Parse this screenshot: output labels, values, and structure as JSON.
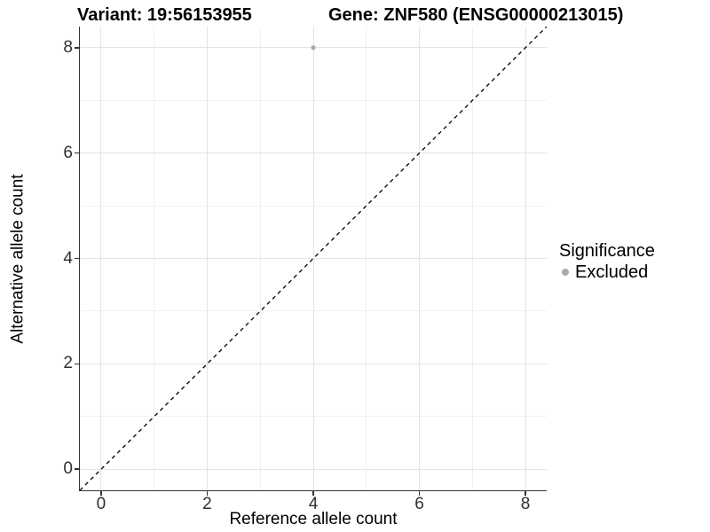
{
  "chart_data": {
    "type": "scatter",
    "titles": {
      "left": "Variant: 19:56153955",
      "right": "Gene: ZNF580 (ENSG00000213015)"
    },
    "xlabel": "Reference allele count",
    "ylabel": "Alternative allele count",
    "xlim": [
      -0.4,
      8.4
    ],
    "ylim": [
      -0.4,
      8.4
    ],
    "x_ticks": [
      0,
      2,
      4,
      6,
      8
    ],
    "y_ticks": [
      0,
      2,
      4,
      6,
      8
    ],
    "x_minor_ticks": [
      1,
      3,
      5,
      7
    ],
    "y_minor_ticks": [
      1,
      3,
      5,
      7
    ],
    "grid": "on",
    "series": [
      {
        "name": "Excluded",
        "marker": "circle",
        "color": "#ABABAB",
        "points": [
          {
            "x": 4,
            "y": 8
          }
        ]
      }
    ],
    "reference_line": {
      "kind": "identity y = x",
      "style": "dashed",
      "color": "#000000",
      "x1": -0.4,
      "y1": -0.4,
      "x2": 8.4,
      "y2": 8.4
    },
    "legend": {
      "title": "Significance",
      "position": "right",
      "entries": [
        {
          "label": "Excluded",
          "color": "#ABABAB",
          "marker": "circle"
        }
      ]
    },
    "colors": {
      "background": "#FFFFFF",
      "grid_major": "#E4E4E4",
      "grid_minor": "#F1F1F1",
      "axis": "#333333",
      "tick_text": "#303030",
      "title_text": "#000000",
      "point": "#ABABAB"
    }
  }
}
